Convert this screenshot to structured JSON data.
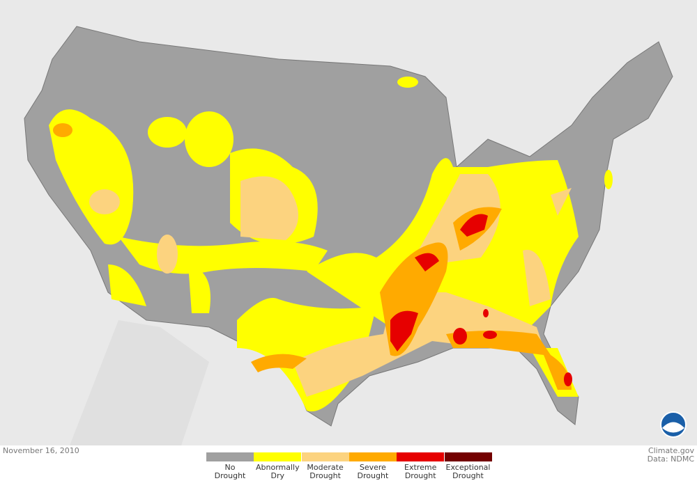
{
  "date": "November 16, 2010",
  "credit": "Climate.gov",
  "source": "Data: NDMC",
  "legend": [
    {
      "label": "No Drought",
      "color": "#a0a0a0"
    },
    {
      "label": "Abnormally Dry",
      "color": "#ffff00"
    },
    {
      "label": "Moderate Drought",
      "color": "#fcd37f"
    },
    {
      "label": "Severe Drought",
      "color": "#ffaa00"
    },
    {
      "label": "Extreme Drought",
      "color": "#e60000"
    },
    {
      "label": "Exceptional Drought",
      "color": "#730000"
    }
  ]
}
